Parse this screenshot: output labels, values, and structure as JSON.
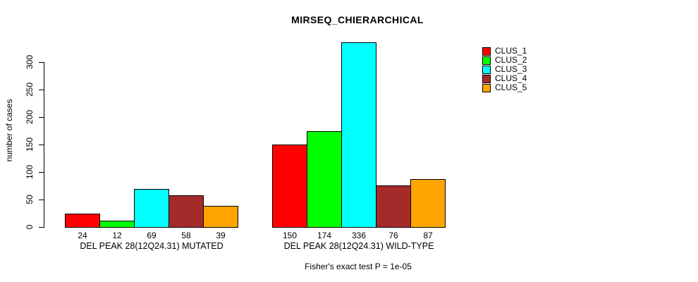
{
  "caption": "Fisher's exact test P = 1e-05",
  "chart_data": {
    "type": "bar",
    "title": "MIRSEQ_CHIERARCHICAL",
    "ylabel": "number of cases",
    "xlabel": "",
    "ylim": [
      0,
      336
    ],
    "yticks": [
      0,
      50,
      100,
      150,
      200,
      250,
      300
    ],
    "grid": false,
    "legend_position": "top-right",
    "bar_value_labels": true,
    "categories": [
      "DEL PEAK 28(12Q24.31) MUTATED",
      "DEL PEAK 28(12Q24.31) WILD-TYPE"
    ],
    "series": [
      {
        "name": "CLUS_1",
        "color": "#ff0000",
        "values": [
          24,
          150
        ]
      },
      {
        "name": "CLUS_2",
        "color": "#00ff00",
        "values": [
          12,
          174
        ]
      },
      {
        "name": "CLUS_3",
        "color": "#00ffff",
        "values": [
          69,
          336
        ]
      },
      {
        "name": "CLUS_4",
        "color": "#a52a2a",
        "values": [
          58,
          76
        ]
      },
      {
        "name": "CLUS_5",
        "color": "#ffa500",
        "values": [
          39,
          87
        ]
      }
    ]
  }
}
